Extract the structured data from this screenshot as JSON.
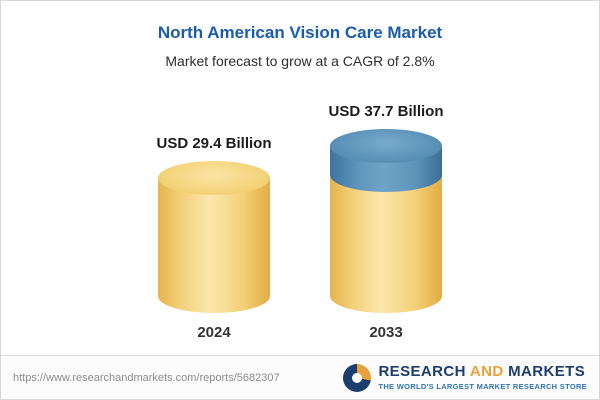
{
  "header": {
    "title": "North American Vision Care Market",
    "subtitle": "Market forecast to grow at a CAGR of 2.8%"
  },
  "chart_data": {
    "type": "bar",
    "variant": "3d-cylinder",
    "title": "North American Vision Care Market",
    "subtitle": "Market forecast to grow at a CAGR of 2.8%",
    "categories": [
      "2024",
      "2033"
    ],
    "values": [
      29.4,
      37.7
    ],
    "value_labels": [
      "USD 29.4 Billion",
      "USD 37.7 Billion"
    ],
    "unit": "USD Billion",
    "cagr": "2.8%",
    "xlabel": "",
    "ylabel": "",
    "ylim": [
      0,
      40
    ],
    "grid": false,
    "legend": "none",
    "axes_visible": false,
    "colors": {
      "bar_body": "#f3cf6d",
      "bar_growth_cap": "#4e87b0",
      "title_text": "#1a5cad"
    }
  },
  "footer": {
    "url": "https://www.researchandmarkets.com/reports/5682307",
    "logo": {
      "name_part1": "RESEARCH",
      "name_part2": "AND",
      "name_part3": "MARKETS",
      "tagline": "THE WORLD'S LARGEST MARKET RESEARCH STORE"
    }
  }
}
